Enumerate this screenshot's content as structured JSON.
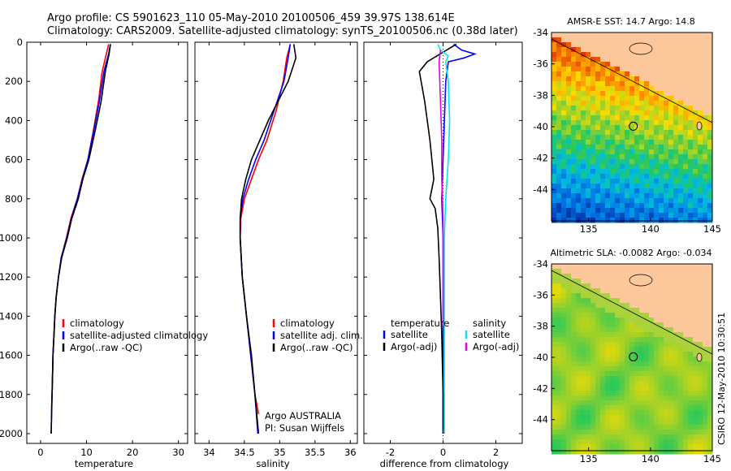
{
  "title_line1": "Argo profile: CS 5901623_110 05-May-2010 20100506_459 39.97S 138.614E",
  "title_line2": "Climatology: CARS2009. Satellite-adjusted climatology: synTS_20100506.nc (0.38d later)",
  "colors": {
    "clim": "#ff0000",
    "sat": "#0000ff",
    "argo": "#000000",
    "sat_sal": "#00e5ee",
    "argo_sal": "#e600e6"
  },
  "chart_data": [
    {
      "type": "line",
      "xlabel": "temperature",
      "xlim": [
        -3,
        32
      ],
      "ylim": [
        2050,
        0
      ],
      "xticks": [
        0,
        10,
        20,
        30
      ],
      "yticks": [
        0,
        200,
        400,
        600,
        800,
        1000,
        1200,
        1400,
        1600,
        1800,
        2000
      ],
      "legend": [
        "climatology",
        "satellite-adjusted climatology",
        "Argo(..raw -QC)"
      ],
      "series": [
        {
          "name": "climatology",
          "color": "clim",
          "points": [
            [
              14.8,
              10
            ],
            [
              14.3,
              60
            ],
            [
              13.4,
              150
            ],
            [
              12.6,
              300
            ],
            [
              11.5,
              450
            ],
            [
              10.3,
              600
            ],
            [
              9.0,
              700
            ],
            [
              8.0,
              800
            ],
            [
              6.6,
              900
            ],
            [
              5.6,
              1000
            ],
            [
              4.5,
              1100
            ],
            [
              3.9,
              1200
            ],
            [
              3.4,
              1300
            ],
            [
              3.1,
              1400
            ],
            [
              2.9,
              1500
            ],
            [
              2.7,
              1600
            ],
            [
              2.6,
              1700
            ],
            [
              2.5,
              1800
            ],
            [
              2.4,
              1870
            ]
          ]
        },
        {
          "name": "satellite-adjusted climatology",
          "color": "sat",
          "points": [
            [
              15.2,
              10
            ],
            [
              14.8,
              60
            ],
            [
              13.8,
              150
            ],
            [
              12.8,
              300
            ],
            [
              11.6,
              450
            ],
            [
              10.3,
              600
            ],
            [
              9.1,
              700
            ],
            [
              8.0,
              800
            ],
            [
              6.7,
              900
            ],
            [
              5.7,
              1000
            ],
            [
              4.5,
              1100
            ],
            [
              3.9,
              1200
            ],
            [
              3.4,
              1300
            ],
            [
              3.1,
              1400
            ],
            [
              2.9,
              1500
            ],
            [
              2.7,
              1600
            ],
            [
              2.6,
              1700
            ],
            [
              2.5,
              1800
            ],
            [
              2.4,
              1900
            ],
            [
              2.3,
              2000
            ]
          ]
        },
        {
          "name": "Argo(..raw -QC)",
          "color": "argo",
          "points": [
            [
              15.2,
              10
            ],
            [
              14.9,
              60
            ],
            [
              14.1,
              150
            ],
            [
              13.2,
              300
            ],
            [
              11.9,
              450
            ],
            [
              10.5,
              600
            ],
            [
              9.2,
              700
            ],
            [
              8.2,
              800
            ],
            [
              6.8,
              900
            ],
            [
              5.8,
              1000
            ],
            [
              4.6,
              1100
            ],
            [
              3.9,
              1200
            ],
            [
              3.4,
              1300
            ],
            [
              3.1,
              1400
            ],
            [
              2.9,
              1500
            ],
            [
              2.7,
              1600
            ],
            [
              2.6,
              1700
            ],
            [
              2.5,
              1800
            ],
            [
              2.4,
              1900
            ],
            [
              2.3,
              2000
            ]
          ]
        }
      ]
    },
    {
      "type": "line",
      "xlabel": "salinity",
      "xlim": [
        33.8,
        36.1
      ],
      "ylim": [
        2050,
        0
      ],
      "xticks": [
        34,
        34.5,
        35,
        35.5,
        36
      ],
      "legend": [
        "climatology",
        "satellite adj. clim.",
        "Argo(..raw -QC)"
      ],
      "annotations": [
        "Argo AUSTRALIA",
        "PI: Susan Wijffels"
      ],
      "series": [
        {
          "name": "climatology",
          "color": "clim",
          "points": [
            [
              35.15,
              10
            ],
            [
              35.1,
              80
            ],
            [
              35.05,
              200
            ],
            [
              34.95,
              350
            ],
            [
              34.82,
              500
            ],
            [
              34.7,
              600
            ],
            [
              34.6,
              700
            ],
            [
              34.5,
              800
            ],
            [
              34.45,
              900
            ],
            [
              34.44,
              1000
            ],
            [
              34.47,
              1200
            ],
            [
              34.53,
              1400
            ],
            [
              34.59,
              1600
            ],
            [
              34.65,
              1800
            ],
            [
              34.7,
              1900
            ]
          ]
        },
        {
          "name": "satellite adj. clim.",
          "color": "sat",
          "points": [
            [
              35.15,
              10
            ],
            [
              35.12,
              80
            ],
            [
              35.06,
              200
            ],
            [
              34.92,
              350
            ],
            [
              34.78,
              500
            ],
            [
              34.66,
              600
            ],
            [
              34.56,
              700
            ],
            [
              34.48,
              800
            ],
            [
              34.44,
              900
            ],
            [
              34.44,
              1000
            ],
            [
              34.47,
              1200
            ],
            [
              34.53,
              1400
            ],
            [
              34.59,
              1600
            ],
            [
              34.65,
              1800
            ],
            [
              34.69,
              2000
            ]
          ]
        },
        {
          "name": "Argo(..raw -QC)",
          "color": "argo",
          "points": [
            [
              35.2,
              10
            ],
            [
              35.23,
              80
            ],
            [
              35.12,
              200
            ],
            [
              34.98,
              300
            ],
            [
              34.84,
              400
            ],
            [
              34.72,
              500
            ],
            [
              34.6,
              600
            ],
            [
              34.52,
              700
            ],
            [
              34.46,
              800
            ],
            [
              34.44,
              900
            ],
            [
              34.44,
              1000
            ],
            [
              34.47,
              1200
            ],
            [
              34.53,
              1400
            ],
            [
              34.6,
              1600
            ],
            [
              34.65,
              1800
            ],
            [
              34.7,
              2000
            ]
          ]
        }
      ]
    },
    {
      "type": "line",
      "xlabel": "difference from climatology",
      "xlim": [
        -3,
        3
      ],
      "ylim": [
        2050,
        0
      ],
      "xticks": [
        -2,
        0,
        2
      ],
      "legend_temperature": {
        "title": "temperature",
        "items": [
          "satellite",
          "Argo(-adj)"
        ]
      },
      "legend_salinity": {
        "title": "salinity",
        "items": [
          "satellite",
          "Argo(-adj)"
        ]
      },
      "series": [
        {
          "name": "temperature satellite",
          "color": "sat",
          "points": [
            [
              0.4,
              10
            ],
            [
              0.7,
              40
            ],
            [
              1.2,
              60
            ],
            [
              0.8,
              80
            ],
            [
              0.2,
              100
            ],
            [
              0.1,
              200
            ],
            [
              0.05,
              400
            ],
            [
              0.0,
              600
            ],
            [
              -0.05,
              800
            ],
            [
              0.0,
              1000
            ],
            [
              0.0,
              1500
            ],
            [
              0.0,
              2000
            ]
          ]
        },
        {
          "name": "temperature Argo(-adj)",
          "color": "argo",
          "points": [
            [
              0.5,
              10
            ],
            [
              -0.6,
              100
            ],
            [
              -0.9,
              150
            ],
            [
              -0.7,
              300
            ],
            [
              -0.5,
              500
            ],
            [
              -0.35,
              700
            ],
            [
              -0.5,
              800
            ],
            [
              -0.3,
              850
            ],
            [
              -0.2,
              950
            ],
            [
              -0.15,
              1100
            ],
            [
              -0.1,
              1300
            ],
            [
              -0.05,
              1500
            ],
            [
              0.0,
              1800
            ],
            [
              0.0,
              2000
            ]
          ]
        },
        {
          "name": "salinity satellite",
          "color": "sat_sal",
          "points": [
            [
              -0.2,
              10
            ],
            [
              -0.1,
              40
            ],
            [
              0.2,
              70
            ],
            [
              0.1,
              100
            ],
            [
              0.2,
              200
            ],
            [
              0.25,
              400
            ],
            [
              0.2,
              600
            ],
            [
              0.1,
              800
            ],
            [
              0.05,
              1000
            ],
            [
              0.05,
              1200
            ],
            [
              0.05,
              1500
            ],
            [
              0.05,
              2000
            ]
          ]
        },
        {
          "name": "salinity Argo(-adj)",
          "color": "argo_sal",
          "points": [
            [
              -0.1,
              40
            ],
            [
              -0.15,
              100
            ],
            [
              -0.1,
              300
            ],
            [
              -0.05,
              500
            ],
            [
              -0.05,
              700
            ],
            [
              0.0,
              900
            ],
            [
              0.0,
              1100
            ],
            [
              0.0,
              1300
            ],
            [
              0.0,
              1450
            ]
          ]
        }
      ]
    },
    {
      "type": "heatmap",
      "title": "AMSR-E SST: 14.7 Argo: 14.8",
      "xticks": [
        135,
        140,
        145
      ],
      "yticks": [
        -34,
        -36,
        -38,
        -40,
        -42,
        -44
      ],
      "xlim": [
        132,
        145
      ],
      "ylim": [
        -46,
        -34
      ],
      "marker": [
        138.614,
        -39.97
      ]
    },
    {
      "type": "heatmap",
      "title": "Altimetric SLA: -0.0082 Argo: -0.034",
      "xticks": [
        135,
        140,
        145
      ],
      "yticks": [
        -34,
        -36,
        -38,
        -40,
        -42,
        -44
      ],
      "xlim": [
        132,
        145
      ],
      "ylim": [
        -46,
        -34
      ],
      "marker": [
        138.614,
        -39.97
      ]
    }
  ],
  "side_label": "CSIRO 12-May-2010 10:30:51"
}
